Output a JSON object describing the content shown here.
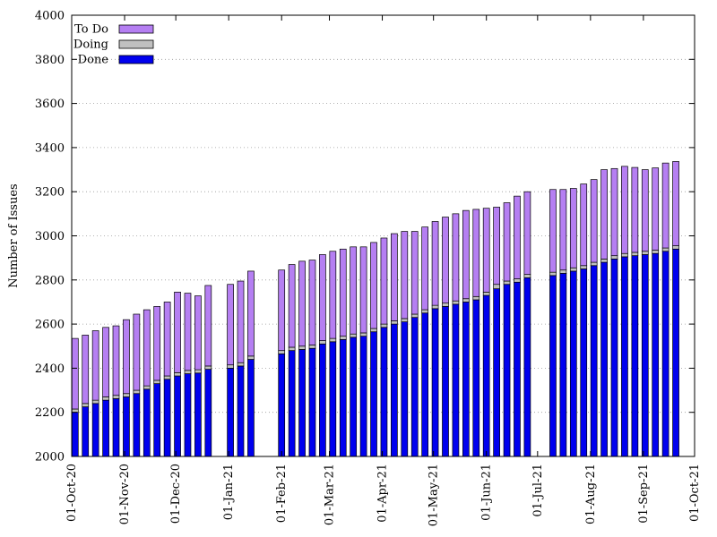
{
  "chart_data": {
    "type": "bar",
    "stacked": true,
    "title": "",
    "xlabel": "",
    "ylabel": "Number of Issues",
    "ylim": [
      2000,
      4000
    ],
    "yticks": [
      2000,
      2200,
      2400,
      2600,
      2800,
      3000,
      3200,
      3400,
      3600,
      3800,
      4000
    ],
    "xlim": [
      "2020-10-01",
      "2021-10-01"
    ],
    "xtick_labels": [
      "01-Oct-20",
      "01-Nov-20",
      "01-Dec-20",
      "01-Jan-21",
      "01-Feb-21",
      "01-Mar-21",
      "01-Apr-21",
      "01-May-21",
      "01-Jun-21",
      "01-Jul-21",
      "01-Aug-21",
      "01-Sep-21",
      "01-Oct-21"
    ],
    "xtick_dates": [
      "2020-10-01",
      "2020-11-01",
      "2020-12-01",
      "2021-01-01",
      "2021-02-01",
      "2021-03-01",
      "2021-04-01",
      "2021-05-01",
      "2021-06-01",
      "2021-07-01",
      "2021-08-01",
      "2021-09-01",
      "2021-10-01"
    ],
    "grid": "horizontal-dotted",
    "legend_position": "top-left",
    "series": [
      {
        "name": "Done",
        "color": "#0000ee"
      },
      {
        "name": "Doing",
        "color": "#c0c0c0"
      },
      {
        "name": "To Do",
        "color": "#b57ff2"
      }
    ],
    "dates": [
      "2020-10-03",
      "2020-10-09",
      "2020-10-15",
      "2020-10-21",
      "2020-10-27",
      "2020-11-02",
      "2020-11-08",
      "2020-11-14",
      "2020-11-20",
      "2020-11-26",
      "2020-12-02",
      "2020-12-08",
      "2020-12-14",
      "2020-12-20",
      "2021-01-02",
      "2021-01-08",
      "2021-01-14",
      "2021-02-01",
      "2021-02-07",
      "2021-02-13",
      "2021-02-19",
      "2021-02-25",
      "2021-03-03",
      "2021-03-09",
      "2021-03-15",
      "2021-03-21",
      "2021-03-27",
      "2021-04-02",
      "2021-04-08",
      "2021-04-14",
      "2021-04-20",
      "2021-04-26",
      "2021-05-02",
      "2021-05-08",
      "2021-05-14",
      "2021-05-20",
      "2021-05-26",
      "2021-06-01",
      "2021-06-07",
      "2021-06-13",
      "2021-06-19",
      "2021-06-25",
      "2021-07-10",
      "2021-07-16",
      "2021-07-22",
      "2021-07-28",
      "2021-08-03",
      "2021-08-09",
      "2021-08-15",
      "2021-08-21",
      "2021-08-27",
      "2021-09-02",
      "2021-09-08",
      "2021-09-14",
      "2021-09-20"
    ],
    "done": [
      2200,
      2225,
      2240,
      2255,
      2262,
      2270,
      2285,
      2305,
      2330,
      2350,
      2365,
      2375,
      2378,
      2395,
      2400,
      2410,
      2440,
      2465,
      2480,
      2485,
      2490,
      2510,
      2520,
      2530,
      2540,
      2545,
      2565,
      2585,
      2600,
      2610,
      2630,
      2650,
      2670,
      2680,
      2690,
      2700,
      2710,
      2730,
      2760,
      2780,
      2790,
      2810,
      2820,
      2830,
      2840,
      2850,
      2865,
      2880,
      2895,
      2905,
      2910,
      2915,
      2920,
      2930,
      2940
    ],
    "doing": [
      15,
      15,
      15,
      15,
      15,
      15,
      15,
      15,
      15,
      15,
      15,
      15,
      15,
      15,
      15,
      15,
      15,
      15,
      15,
      15,
      15,
      15,
      15,
      15,
      15,
      15,
      15,
      15,
      15,
      15,
      15,
      15,
      15,
      15,
      15,
      15,
      15,
      15,
      20,
      15,
      15,
      15,
      15,
      15,
      15,
      15,
      15,
      15,
      15,
      15,
      15,
      15,
      15,
      15,
      15
    ],
    "todo": [
      320,
      310,
      315,
      315,
      315,
      335,
      345,
      345,
      335,
      335,
      365,
      350,
      335,
      365,
      365,
      370,
      385,
      365,
      375,
      385,
      385,
      390,
      395,
      395,
      395,
      390,
      390,
      390,
      395,
      395,
      375,
      375,
      380,
      390,
      395,
      400,
      395,
      380,
      350,
      355,
      375,
      375,
      375,
      365,
      360,
      370,
      375,
      405,
      395,
      395,
      385,
      370,
      373,
      385,
      382
    ],
    "todo_display": [
      320,
      310,
      315,
      315,
      315,
      335,
      345,
      345,
      335,
      335,
      365,
      350,
      335,
      365,
      365,
      370,
      385,
      365,
      375,
      385,
      385,
      390,
      395,
      395,
      395,
      390,
      390,
      390,
      395,
      395,
      375,
      375,
      380,
      390,
      395,
      400,
      395,
      380,
      350,
      355,
      375,
      375,
      375,
      365,
      360,
      370,
      375,
      405,
      395,
      395,
      385,
      370,
      373,
      385,
      382
    ]
  }
}
